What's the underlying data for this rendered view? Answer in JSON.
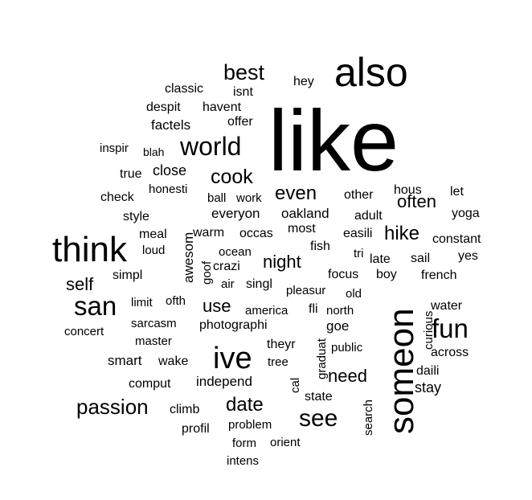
{
  "colors": {
    "background": "#ffffff",
    "text": "#000000"
  },
  "words": [
    "like",
    "also",
    "someon",
    "think",
    "ive",
    "san",
    "fun",
    "world",
    "see",
    "best",
    "cook",
    "passion",
    "even",
    "hike",
    "date",
    "night",
    "often",
    "need",
    "self",
    "use",
    "hey",
    "classic",
    "isnt",
    "despit",
    "havent",
    "factels",
    "offer",
    "inspir",
    "blah",
    "true",
    "close",
    "honesti",
    "check",
    "ball",
    "work",
    "style",
    "awesom",
    "everyon",
    "oakland",
    "adult",
    "hous",
    "let",
    "other",
    "yoga",
    "meal",
    "warm",
    "occas",
    "most",
    "easili",
    "constant",
    "loud",
    "goof",
    "ocean",
    "fish",
    "tri",
    "sail",
    "yes",
    "crazi",
    "late",
    "simpl",
    "air",
    "singl",
    "focus",
    "boy",
    "french",
    "pleasur",
    "old",
    "limit",
    "ofth",
    "curious",
    "water",
    "america",
    "fli",
    "north",
    "concert",
    "sarcasm",
    "photographi",
    "goe",
    "master",
    "theyr",
    "public",
    "across",
    "smart",
    "wake",
    "graduat",
    "tree",
    "daili",
    "comput",
    "independ",
    "cal",
    "stay",
    "state",
    "climb",
    "search",
    "profil",
    "problem",
    "form",
    "orient",
    "intens"
  ]
}
